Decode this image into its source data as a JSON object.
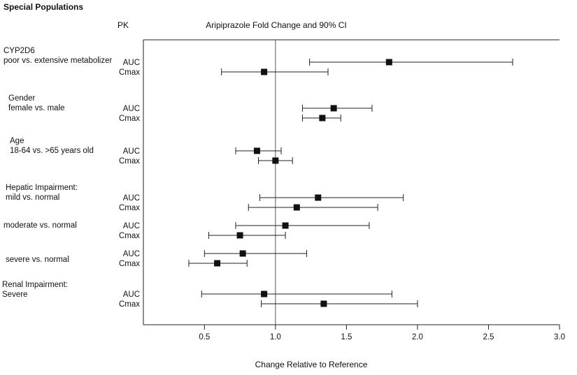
{
  "figure": {
    "title": "Special Populations",
    "pk_header": "PK",
    "chart_title": "Aripiprazole Fold Change and 90% CI",
    "x_axis_label": "Change Relative to Reference"
  },
  "chart_data": {
    "type": "forest",
    "title": "Aripiprazole Fold Change and 90% CI",
    "xlabel": "Change Relative to Reference",
    "ci_level": "90% CI",
    "x_ticks": [
      0.5,
      1.0,
      1.5,
      2.0,
      2.5,
      3.0
    ],
    "xlim": [
      0.07,
      3.0
    ],
    "reference_line": 1.0,
    "grid": false,
    "colors": {
      "marker": "#111111",
      "line": "#222222",
      "reference": "#555555",
      "axis": "#222222"
    },
    "groups": [
      {
        "label_lines": [
          "CYP2D6",
          "poor vs. extensive metabolizer"
        ],
        "rows": [
          {
            "pk": "AUC",
            "estimate": 1.8,
            "low": 1.24,
            "high": 2.67
          },
          {
            "pk": "Cmax",
            "estimate": 0.92,
            "low": 0.62,
            "high": 1.37
          }
        ]
      },
      {
        "label_lines": [
          "Gender",
          "female vs. male"
        ],
        "rows": [
          {
            "pk": "AUC",
            "estimate": 1.41,
            "low": 1.19,
            "high": 1.68
          },
          {
            "pk": "Cmax",
            "estimate": 1.33,
            "low": 1.19,
            "high": 1.46
          }
        ]
      },
      {
        "label_lines": [
          "Age",
          "18-64 vs. >65 years old"
        ],
        "rows": [
          {
            "pk": "AUC",
            "estimate": 0.87,
            "low": 0.72,
            "high": 1.04
          },
          {
            "pk": "Cmax",
            "estimate": 1.0,
            "low": 0.88,
            "high": 1.12
          }
        ]
      },
      {
        "label_lines": [
          "Hepatic Impairment:",
          "mild vs. normal"
        ],
        "rows": [
          {
            "pk": "AUC",
            "estimate": 1.3,
            "low": 0.89,
            "high": 1.9
          },
          {
            "pk": "Cmax",
            "estimate": 1.15,
            "low": 0.81,
            "high": 1.72
          }
        ]
      },
      {
        "label_lines": [
          "moderate vs. normal"
        ],
        "rows": [
          {
            "pk": "AUC",
            "estimate": 1.07,
            "low": 0.72,
            "high": 1.66
          },
          {
            "pk": "Cmax",
            "estimate": 0.75,
            "low": 0.53,
            "high": 1.07
          }
        ]
      },
      {
        "label_lines": [
          "severe vs. normal"
        ],
        "rows": [
          {
            "pk": "AUC",
            "estimate": 0.77,
            "low": 0.5,
            "high": 1.22
          },
          {
            "pk": "Cmax",
            "estimate": 0.59,
            "low": 0.39,
            "high": 0.8
          }
        ]
      },
      {
        "label_lines": [
          "Renal Impairment:",
          "Severe"
        ],
        "rows": [
          {
            "pk": "AUC",
            "estimate": 0.92,
            "low": 0.48,
            "high": 1.82
          },
          {
            "pk": "Cmax",
            "estimate": 1.34,
            "low": 0.9,
            "high": 2.0
          }
        ]
      }
    ]
  }
}
